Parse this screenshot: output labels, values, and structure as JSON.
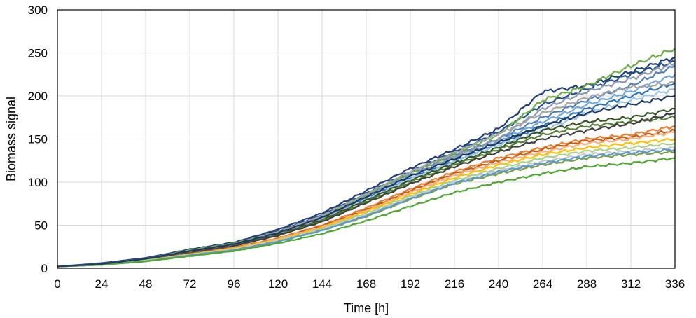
{
  "chart_data": {
    "type": "line",
    "title": "",
    "xlabel": "Time [h]",
    "ylabel": "Biomass signal",
    "xlim": [
      0,
      336
    ],
    "ylim": [
      0,
      300
    ],
    "xticks": [
      0,
      24,
      48,
      72,
      96,
      120,
      144,
      168,
      192,
      216,
      240,
      264,
      288,
      312,
      336
    ],
    "yticks": [
      0,
      50,
      100,
      150,
      200,
      250,
      300
    ],
    "grid": true,
    "legend": "none",
    "x": [
      0,
      24,
      48,
      72,
      96,
      120,
      144,
      168,
      192,
      216,
      240,
      264,
      288,
      312,
      336
    ],
    "series": [
      {
        "color": "#1f3f7a",
        "values": [
          2,
          6,
          12,
          22,
          30,
          45,
          64,
          90,
          116,
          138,
          162,
          205,
          212,
          228,
          245
        ]
      },
      {
        "color": "#24508f",
        "values": [
          2,
          5,
          11,
          21,
          29,
          43,
          62,
          87,
          112,
          135,
          158,
          190,
          208,
          225,
          240
        ]
      },
      {
        "color": "#4f81bd",
        "values": [
          2,
          5,
          11,
          20,
          28,
          42,
          60,
          85,
          110,
          132,
          150,
          175,
          195,
          212,
          235
        ]
      },
      {
        "color": "#6fa8dc",
        "values": [
          2,
          5,
          11,
          20,
          28,
          41,
          59,
          84,
          108,
          128,
          148,
          170,
          190,
          205,
          225
        ]
      },
      {
        "color": "#2e75b6",
        "values": [
          2,
          5,
          10,
          20,
          27,
          40,
          58,
          82,
          105,
          125,
          145,
          165,
          185,
          200,
          215
        ]
      },
      {
        "color": "#9dc3e6",
        "values": [
          2,
          5,
          10,
          19,
          27,
          40,
          57,
          80,
          104,
          124,
          143,
          160,
          180,
          195,
          208
        ]
      },
      {
        "color": "#8e9aaf",
        "values": [
          2,
          5,
          10,
          19,
          27,
          40,
          58,
          83,
          107,
          130,
          150,
          185,
          205,
          220,
          238
        ]
      },
      {
        "color": "#70ad47",
        "values": [
          2,
          5,
          11,
          21,
          29,
          42,
          60,
          86,
          111,
          133,
          155,
          195,
          212,
          235,
          255
        ]
      },
      {
        "color": "#375623",
        "values": [
          2,
          5,
          10,
          19,
          27,
          39,
          56,
          79,
          102,
          122,
          140,
          160,
          170,
          175,
          185
        ]
      },
      {
        "color": "#548235",
        "values": [
          2,
          5,
          10,
          19,
          26,
          38,
          55,
          77,
          100,
          120,
          138,
          155,
          165,
          170,
          175
        ]
      },
      {
        "color": "#404040",
        "values": [
          2,
          5,
          10,
          18,
          26,
          38,
          54,
          76,
          98,
          118,
          135,
          150,
          160,
          168,
          180
        ]
      },
      {
        "color": "#ed7d31",
        "values": [
          2,
          4,
          9,
          17,
          24,
          35,
          50,
          70,
          92,
          112,
          128,
          140,
          150,
          155,
          165
        ]
      },
      {
        "color": "#c55a11",
        "values": [
          2,
          4,
          9,
          17,
          23,
          34,
          49,
          68,
          90,
          110,
          125,
          138,
          148,
          152,
          160
        ]
      },
      {
        "color": "#f4b183",
        "values": [
          2,
          4,
          9,
          16,
          23,
          34,
          48,
          67,
          88,
          108,
          123,
          135,
          145,
          150,
          158
        ]
      },
      {
        "color": "#ffc000",
        "values": [
          2,
          4,
          9,
          16,
          23,
          33,
          47,
          66,
          86,
          105,
          120,
          132,
          140,
          145,
          150
        ]
      },
      {
        "color": "#a9d18e",
        "values": [
          2,
          4,
          9,
          16,
          22,
          32,
          46,
          64,
          84,
          102,
          116,
          128,
          136,
          140,
          145
        ]
      },
      {
        "color": "#c9c9c9",
        "values": [
          2,
          4,
          8,
          15,
          22,
          32,
          45,
          62,
          82,
          100,
          113,
          124,
          132,
          136,
          140
        ]
      },
      {
        "color": "#7f9f3f",
        "values": [
          2,
          4,
          8,
          15,
          21,
          31,
          44,
          60,
          80,
          98,
          110,
          120,
          128,
          132,
          135
        ]
      },
      {
        "color": "#5b9bd5",
        "values": [
          2,
          4,
          8,
          15,
          21,
          31,
          44,
          61,
          81,
          99,
          112,
          122,
          130,
          134,
          138
        ]
      },
      {
        "color": "#4ea72e",
        "values": [
          2,
          4,
          8,
          14,
          20,
          29,
          40,
          55,
          72,
          88,
          100,
          110,
          118,
          122,
          128
        ]
      },
      {
        "color": "#a5a5a5",
        "values": [
          2,
          5,
          11,
          20,
          28,
          42,
          61,
          86,
          112,
          134,
          156,
          180,
          198,
          210,
          215
        ]
      },
      {
        "color": "#203864",
        "values": [
          2,
          5,
          11,
          20,
          28,
          41,
          59,
          83,
          107,
          127,
          146,
          165,
          180,
          190,
          200
        ]
      }
    ]
  }
}
